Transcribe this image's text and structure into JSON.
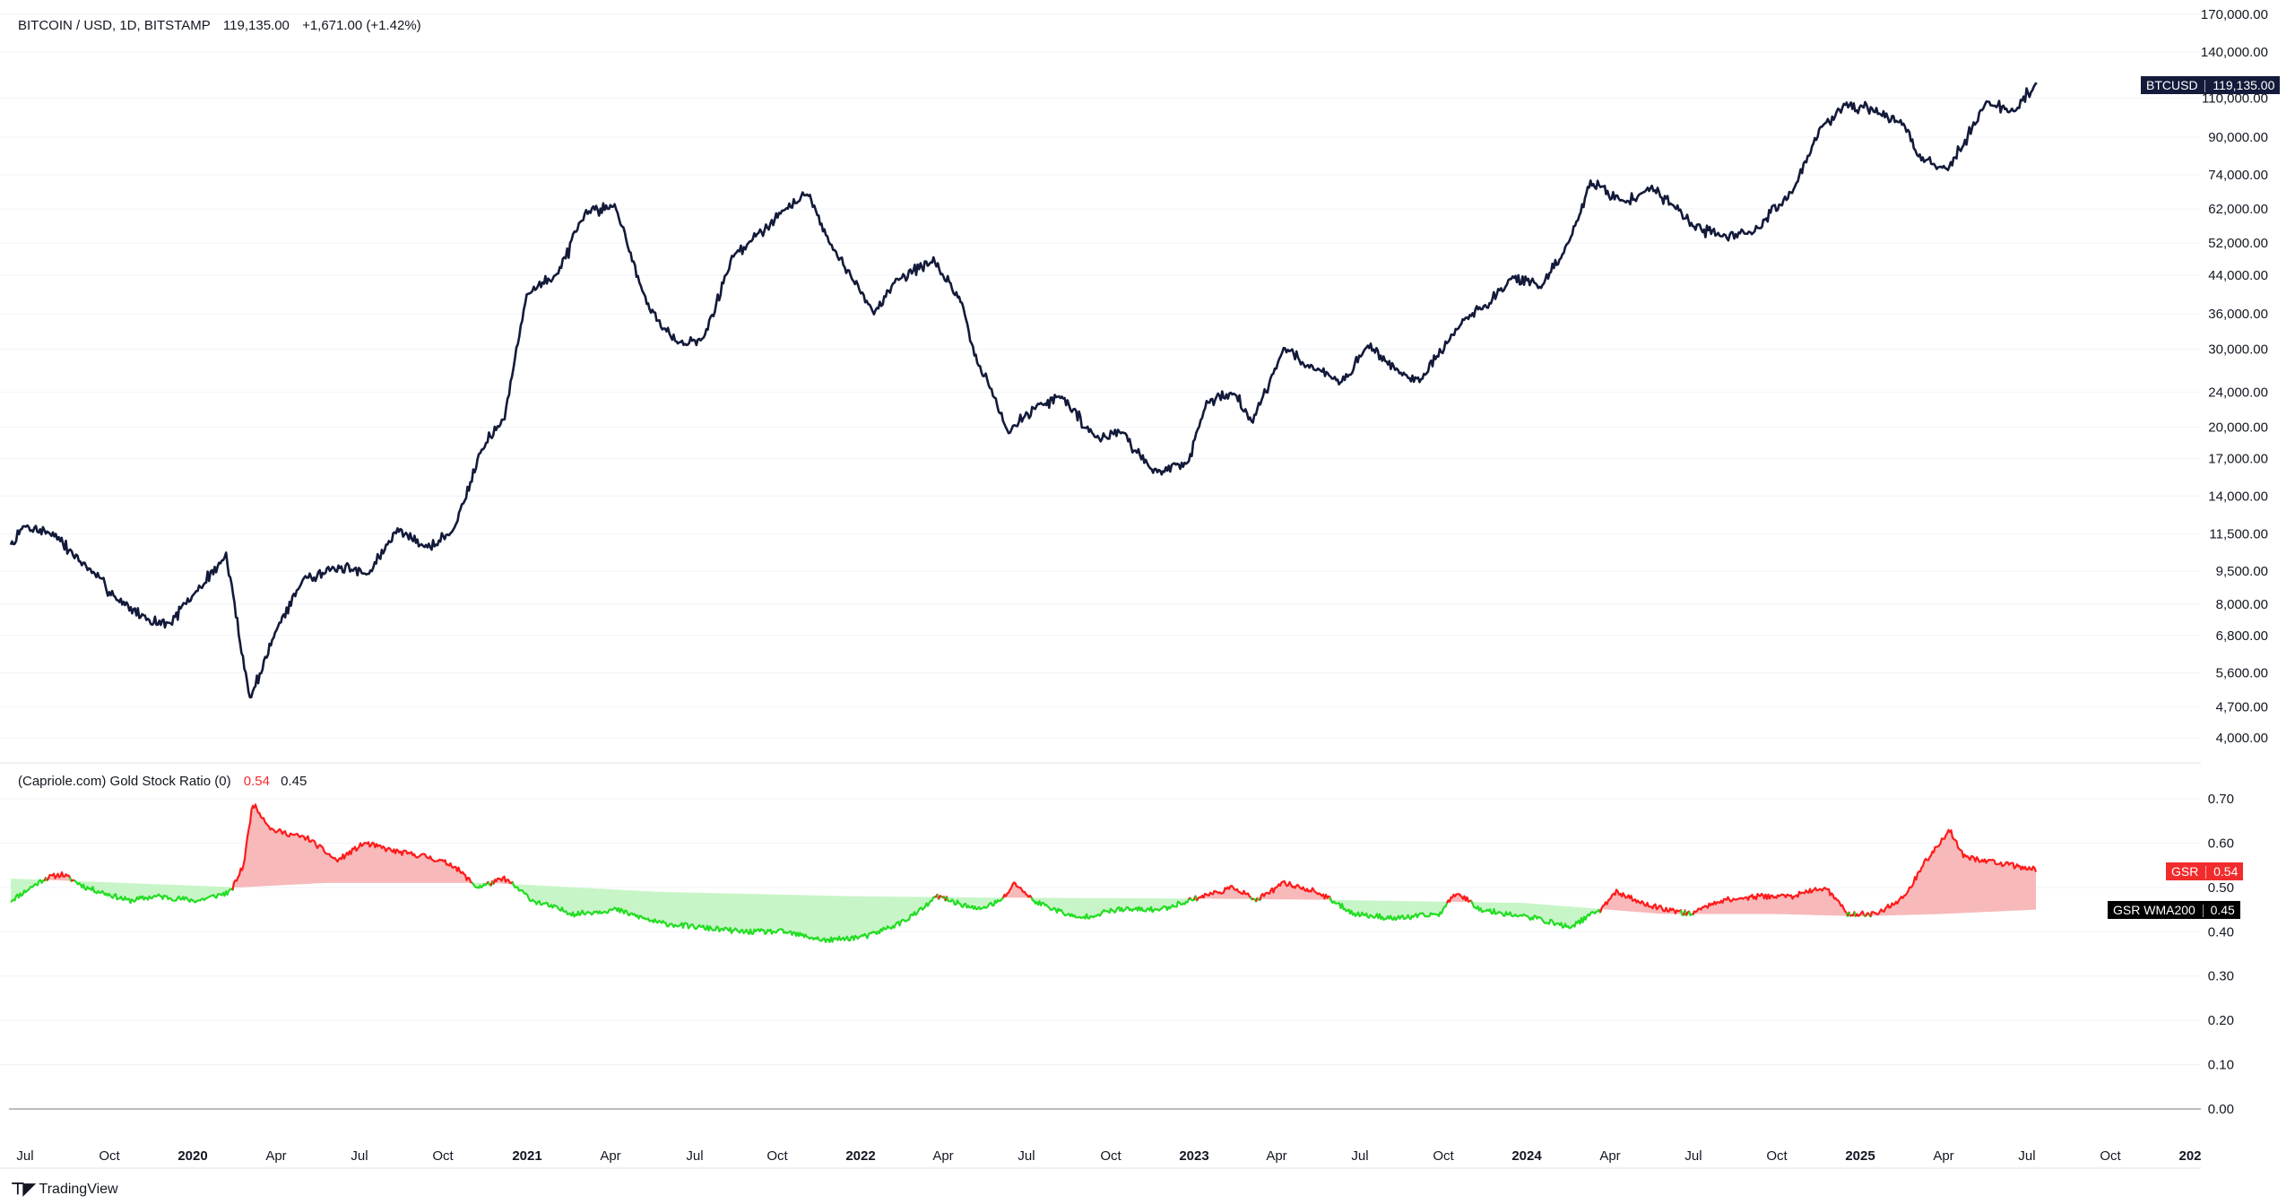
{
  "top_legend": {
    "symbol": "BITCOIN / USD, 1D, BITSTAMP",
    "price": "119,135.00",
    "change": "+1,671.00 (+1.42%)"
  },
  "bottom_legend": {
    "name": "(Capriole.com) Gold Stock Ratio (0)",
    "gsr_value": "0.54",
    "wma_value": "0.45"
  },
  "tags": {
    "btc_label": "BTCUSD",
    "btc_value": "119,135.00",
    "gsr_label": "GSR",
    "gsr_value": "0.54",
    "wma_label": "GSR WMA200",
    "wma_value": "0.45"
  },
  "branding": {
    "logo_text": "TradingView"
  },
  "colors": {
    "price_line": "#131a3a",
    "gsr_above": "#ff1a1a",
    "gsr_below": "#22dd22",
    "fill_above": "#f7b9b9",
    "fill_below": "#c8f5c8",
    "tag_dark": "#131a3a",
    "tag_red": "#f22c2c",
    "tag_black": "#000000",
    "grid": "#f0f3fa",
    "zero_line": "#787b86"
  },
  "chart_data": [
    {
      "type": "line",
      "scale": "log",
      "ylim": [
        3800,
        180000
      ],
      "y_ticks": [
        170000,
        140000,
        110000,
        90000,
        74000,
        62000,
        52000,
        44000,
        36000,
        30000,
        24000,
        20000,
        17000,
        14000,
        11500,
        9500,
        8000,
        6800,
        5600,
        4700,
        4000
      ],
      "y_tick_labels": [
        "170,000.00",
        "140,000.00",
        "110,000.00",
        "90,000.00",
        "74,000.00",
        "62,000.00",
        "52,000.00",
        "44,000.00",
        "36,000.00",
        "30,000.00",
        "24,000.00",
        "20,000.00",
        "17,000.00",
        "14,000.00",
        "11,500.00",
        "9,500.00",
        "8,000.00",
        "6,800.00",
        "5,600.00",
        "4,700.00",
        "4,000.00"
      ],
      "series": [
        {
          "x": [
            "2019-06-25",
            "2019-07-10",
            "2019-08-10",
            "2019-09-20",
            "2019-10-20",
            "2019-11-20",
            "2019-12-15",
            "2020-01-15",
            "2020-02-15",
            "2020-03-12",
            "2020-04-10",
            "2020-05-10",
            "2020-06-15",
            "2020-07-20",
            "2020-08-20",
            "2020-09-20",
            "2020-10-20",
            "2020-11-20",
            "2020-12-15",
            "2021-01-08",
            "2021-02-10",
            "2021-03-14",
            "2021-04-14",
            "2021-05-19",
            "2021-06-22",
            "2021-07-20",
            "2021-08-20",
            "2021-09-07",
            "2021-10-20",
            "2021-11-10",
            "2021-12-10",
            "2022-01-22",
            "2022-02-15",
            "2022-03-28",
            "2022-04-25",
            "2022-05-10",
            "2022-06-18",
            "2022-07-20",
            "2022-08-15",
            "2022-09-20",
            "2022-10-20",
            "2022-11-21",
            "2022-12-30",
            "2023-01-20",
            "2023-02-20",
            "2023-03-10",
            "2023-04-14",
            "2023-05-20",
            "2023-06-15",
            "2023-07-15",
            "2023-08-20",
            "2023-09-11",
            "2023-10-25",
            "2023-11-20",
            "2023-12-20",
            "2024-01-20",
            "2024-02-20",
            "2024-03-14",
            "2024-04-20",
            "2024-05-20",
            "2024-06-20",
            "2024-07-05",
            "2024-08-05",
            "2024-09-06",
            "2024-10-20",
            "2024-11-20",
            "2024-12-17",
            "2025-01-20",
            "2025-02-20",
            "2025-03-10",
            "2025-04-08",
            "2025-05-20",
            "2025-06-20",
            "2025-07-14"
          ],
          "y": [
            10800,
            12000,
            11500,
            9500,
            8200,
            7400,
            7200,
            8600,
            10300,
            4900,
            7000,
            9200,
            9600,
            9400,
            11800,
            10700,
            11700,
            18000,
            21000,
            40000,
            44000,
            61000,
            63500,
            38000,
            31000,
            31500,
            48000,
            52000,
            63000,
            67500,
            50000,
            36000,
            43000,
            47500,
            39000,
            30000,
            19500,
            22500,
            23500,
            19000,
            19500,
            16000,
            16500,
            22700,
            24000,
            20500,
            30000,
            27000,
            25000,
            30500,
            26500,
            25500,
            34500,
            37500,
            43500,
            41500,
            52000,
            71500,
            64000,
            69500,
            61500,
            56500,
            54000,
            54500,
            68000,
            94000,
            106500,
            103000,
            96000,
            80000,
            76500,
            107000,
            103000,
            119135
          ]
        }
      ]
    },
    {
      "type": "area",
      "ylim": [
        0.0,
        0.72
      ],
      "y_ticks": [
        0.7,
        0.6,
        0.5,
        0.4,
        0.3,
        0.2,
        0.1,
        0.0
      ],
      "y_tick_labels": [
        "0.70",
        "0.60",
        "0.50",
        "0.40",
        "0.30",
        "0.20",
        "0.10",
        "0.00"
      ],
      "x_ticks": [
        "Jul",
        "Oct",
        "2020",
        "Apr",
        "Jul",
        "Oct",
        "2021",
        "Apr",
        "Jul",
        "Oct",
        "2022",
        "Apr",
        "Jul",
        "Oct",
        "2023",
        "Apr",
        "Jul",
        "Oct",
        "2024",
        "Apr",
        "Jul",
        "Oct",
        "2025",
        "Apr",
        "Jul",
        "Oct",
        "202"
      ],
      "series": [
        {
          "name": "GSR",
          "x": [
            "2019-06-25",
            "2019-08-01",
            "2019-08-20",
            "2019-09-15",
            "2019-10-01",
            "2019-11-01",
            "2019-12-01",
            "2020-01-15",
            "2020-02-20",
            "2020-03-05",
            "2020-03-15",
            "2020-04-05",
            "2020-05-15",
            "2020-06-15",
            "2020-07-15",
            "2020-08-20",
            "2020-09-20",
            "2020-10-20",
            "2020-11-15",
            "2020-12-01",
            "2020-12-15",
            "2021-01-15",
            "2021-03-01",
            "2021-04-15",
            "2021-06-01",
            "2021-07-15",
            "2021-09-01",
            "2021-10-15",
            "2021-12-01",
            "2022-01-15",
            "2022-02-20",
            "2022-03-15",
            "2022-04-01",
            "2022-05-15",
            "2022-06-10",
            "2022-06-25",
            "2022-07-15",
            "2022-09-01",
            "2022-10-15",
            "2022-12-01",
            "2023-01-15",
            "2023-02-20",
            "2023-03-15",
            "2023-04-15",
            "2023-05-20",
            "2023-07-01",
            "2023-08-15",
            "2023-10-01",
            "2023-10-20",
            "2023-11-15",
            "2024-01-15",
            "2024-02-20",
            "2024-03-25",
            "2024-04-10",
            "2024-05-15",
            "2024-07-01",
            "2024-08-01",
            "2024-09-15",
            "2024-10-20",
            "2024-11-25",
            "2024-12-20",
            "2025-01-20",
            "2025-02-20",
            "2025-03-15",
            "2025-04-10",
            "2025-04-25",
            "2025-05-20",
            "2025-06-15",
            "2025-07-14"
          ],
          "values": [
            0.47,
            0.52,
            0.53,
            0.5,
            0.49,
            0.47,
            0.48,
            0.47,
            0.49,
            0.55,
            0.69,
            0.63,
            0.61,
            0.56,
            0.6,
            0.58,
            0.57,
            0.55,
            0.5,
            0.51,
            0.52,
            0.47,
            0.44,
            0.45,
            0.42,
            0.41,
            0.4,
            0.4,
            0.38,
            0.39,
            0.42,
            0.45,
            0.48,
            0.45,
            0.47,
            0.51,
            0.47,
            0.43,
            0.45,
            0.45,
            0.48,
            0.5,
            0.47,
            0.51,
            0.49,
            0.44,
            0.43,
            0.44,
            0.49,
            0.45,
            0.43,
            0.41,
            0.45,
            0.49,
            0.46,
            0.44,
            0.47,
            0.48,
            0.48,
            0.5,
            0.44,
            0.44,
            0.48,
            0.56,
            0.63,
            0.57,
            0.56,
            0.55,
            0.54
          ]
        },
        {
          "name": "GSR WMA200",
          "x": [
            "2019-06-25",
            "2020-03-01",
            "2020-06-01",
            "2020-12-01",
            "2021-06-01",
            "2022-01-01",
            "2022-06-01",
            "2023-01-01",
            "2023-06-01",
            "2024-01-01",
            "2024-06-01",
            "2024-10-01",
            "2025-01-01",
            "2025-04-01",
            "2025-07-14"
          ],
          "values": [
            0.52,
            0.5,
            0.51,
            0.51,
            0.49,
            0.48,
            0.477,
            0.475,
            0.472,
            0.465,
            0.44,
            0.44,
            0.435,
            0.44,
            0.45
          ]
        }
      ]
    }
  ]
}
